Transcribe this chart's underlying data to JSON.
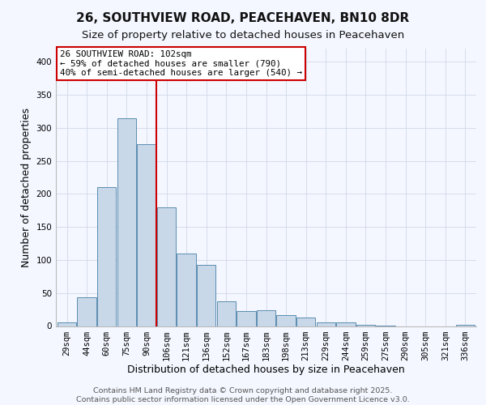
{
  "title": "26, SOUTHVIEW ROAD, PEACEHAVEN, BN10 8DR",
  "subtitle": "Size of property relative to detached houses in Peacehaven",
  "xlabel": "Distribution of detached houses by size in Peacehaven",
  "ylabel": "Number of detached properties",
  "bar_labels": [
    "29sqm",
    "44sqm",
    "60sqm",
    "75sqm",
    "90sqm",
    "106sqm",
    "121sqm",
    "136sqm",
    "152sqm",
    "167sqm",
    "183sqm",
    "198sqm",
    "213sqm",
    "229sqm",
    "244sqm",
    "259sqm",
    "275sqm",
    "290sqm",
    "305sqm",
    "321sqm",
    "336sqm"
  ],
  "bar_values": [
    5,
    43,
    210,
    315,
    275,
    180,
    110,
    93,
    38,
    23,
    24,
    16,
    13,
    5,
    6,
    2,
    1,
    0,
    0,
    0,
    2
  ],
  "bar_color": "#c8d8e8",
  "bar_edge_color": "#5b8db0",
  "vline_color": "#cc0000",
  "ylim": [
    0,
    420
  ],
  "yticks": [
    0,
    50,
    100,
    150,
    200,
    250,
    300,
    350,
    400
  ],
  "annotation_title": "26 SOUTHVIEW ROAD: 102sqm",
  "annotation_line1": "← 59% of detached houses are smaller (790)",
  "annotation_line2": "40% of semi-detached houses are larger (540) →",
  "annotation_box_color": "#ffffff",
  "annotation_box_edge": "#cc0000",
  "footer1": "Contains HM Land Registry data © Crown copyright and database right 2025.",
  "footer2": "Contains public sector information licensed under the Open Government Licence v3.0.",
  "bg_color": "#f4f7ff",
  "grid_color": "#d0d8e8",
  "title_fontsize": 11,
  "subtitle_fontsize": 9.5,
  "axis_label_fontsize": 9,
  "tick_fontsize": 7.5,
  "ann_fontsize": 7.8,
  "footer_fontsize": 6.8
}
